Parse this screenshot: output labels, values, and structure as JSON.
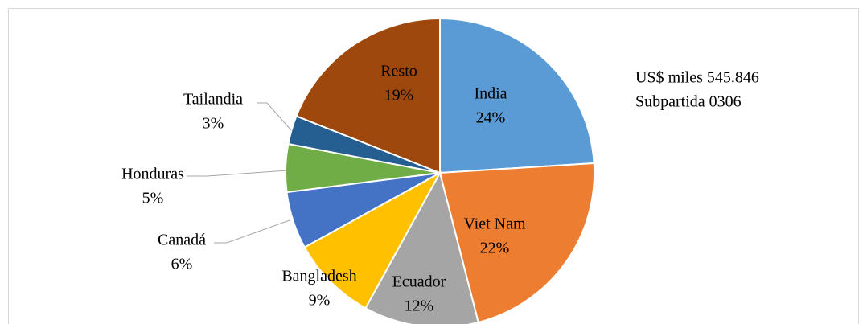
{
  "chart_data": {
    "type": "pie",
    "categories": [
      "India",
      "Viet Nam",
      "Ecuador",
      "Bangladesh",
      "Canadá",
      "Honduras",
      "Tailandia",
      "Resto"
    ],
    "values": [
      24,
      22,
      12,
      9,
      6,
      5,
      3,
      19
    ],
    "value_labels": [
      "24%",
      "22%",
      "12%",
      "9%",
      "6%",
      "5%",
      "3%",
      "19%"
    ],
    "colors": [
      "#5b9bd5",
      "#ed7d31",
      "#a5a5a5",
      "#ffc000",
      "#4472c4",
      "#70ad47",
      "#255e91",
      "#9e480e"
    ],
    "annotations": [
      "US$ miles 545.846",
      "Subpartida 0306"
    ]
  }
}
